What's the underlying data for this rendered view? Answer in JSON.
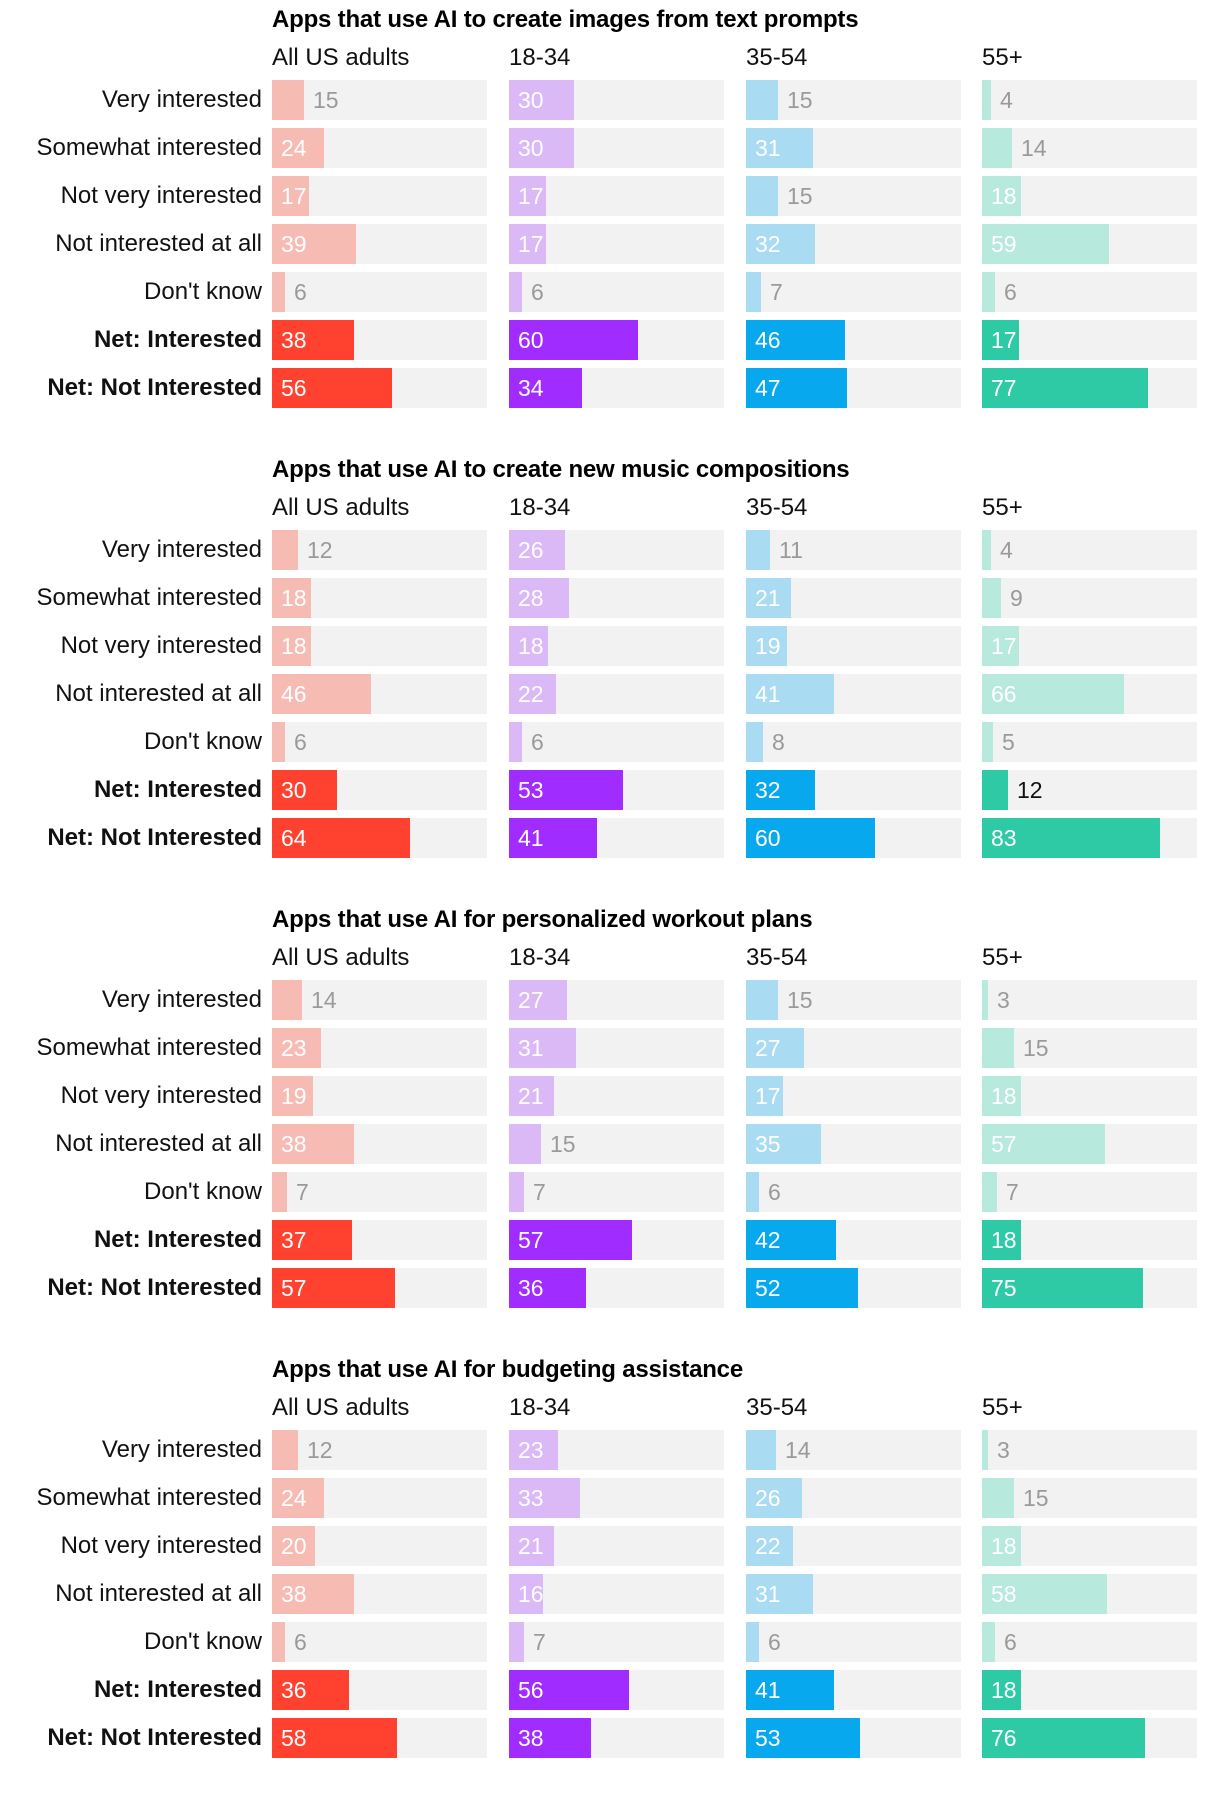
{
  "chart_data": {
    "type": "bar",
    "row_labels": [
      "Very interested",
      "Somewhat interested",
      "Not very interested",
      "Not interested at all",
      "Don't know",
      "Net: Interested",
      "Net: Not Interested"
    ],
    "groups": [
      "All US adults",
      "18-34",
      "35-54",
      "55+"
    ],
    "xlim": [
      0,
      100
    ],
    "colors": {
      "All US adults": {
        "dark": "#ff4230",
        "light": "#f6bcb4"
      },
      "18-34": {
        "dark": "#a12cff",
        "light": "#dbb9f7"
      },
      "35-54": {
        "dark": "#08a8ef",
        "light": "#a9dbf3"
      },
      "55+": {
        "dark": "#2ecaa6",
        "light": "#b7e9dc"
      }
    },
    "charts": [
      {
        "title": "Apps that use AI to create images from text prompts",
        "series": [
          {
            "name": "All US adults",
            "values": [
              15,
              24,
              17,
              39,
              6,
              38,
              56
            ]
          },
          {
            "name": "18-34",
            "values": [
              30,
              30,
              17,
              17,
              6,
              60,
              34
            ]
          },
          {
            "name": "35-54",
            "values": [
              15,
              31,
              15,
              32,
              7,
              46,
              47
            ]
          },
          {
            "name": "55+",
            "values": [
              4,
              14,
              18,
              59,
              6,
              17,
              77
            ]
          }
        ]
      },
      {
        "title": "Apps that use AI to create new music compositions",
        "series": [
          {
            "name": "All US adults",
            "values": [
              12,
              18,
              18,
              46,
              6,
              30,
              64
            ]
          },
          {
            "name": "18-34",
            "values": [
              26,
              28,
              18,
              22,
              6,
              53,
              41
            ]
          },
          {
            "name": "35-54",
            "values": [
              11,
              21,
              19,
              41,
              8,
              32,
              60
            ]
          },
          {
            "name": "55+",
            "values": [
              4,
              9,
              17,
              66,
              5,
              12,
              83
            ]
          }
        ]
      },
      {
        "title": "Apps that use AI for personalized workout plans",
        "series": [
          {
            "name": "All US adults",
            "values": [
              14,
              23,
              19,
              38,
              7,
              37,
              57
            ]
          },
          {
            "name": "18-34",
            "values": [
              27,
              31,
              21,
              15,
              7,
              57,
              36
            ]
          },
          {
            "name": "35-54",
            "values": [
              15,
              27,
              17,
              35,
              6,
              42,
              52
            ]
          },
          {
            "name": "55+",
            "values": [
              3,
              15,
              18,
              57,
              7,
              18,
              75
            ]
          }
        ]
      },
      {
        "title": "Apps that use AI for budgeting assistance",
        "series": [
          {
            "name": "All US adults",
            "values": [
              12,
              24,
              20,
              38,
              6,
              36,
              58
            ]
          },
          {
            "name": "18-34",
            "values": [
              23,
              33,
              21,
              16,
              7,
              56,
              38
            ]
          },
          {
            "name": "35-54",
            "values": [
              14,
              26,
              22,
              31,
              6,
              41,
              53
            ]
          },
          {
            "name": "55+",
            "values": [
              3,
              15,
              18,
              58,
              6,
              18,
              76
            ]
          }
        ]
      }
    ]
  }
}
